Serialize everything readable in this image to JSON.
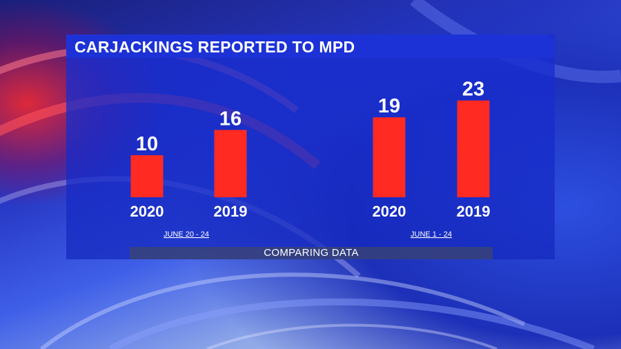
{
  "title": "CARJACKINGS REPORTED TO MPD",
  "footer": "COMPARING DATA",
  "colors": {
    "bar": "#ff2a22",
    "panel": "#1d32d6",
    "text": "#ffffff"
  },
  "chart_data": [
    {
      "type": "bar",
      "group_label": "JUNE 20 - 24",
      "categories": [
        "2020",
        "2019"
      ],
      "values": [
        10,
        16
      ]
    },
    {
      "type": "bar",
      "group_label": "JUNE 1 - 24",
      "categories": [
        "2020",
        "2019"
      ],
      "values": [
        19,
        23
      ]
    }
  ]
}
